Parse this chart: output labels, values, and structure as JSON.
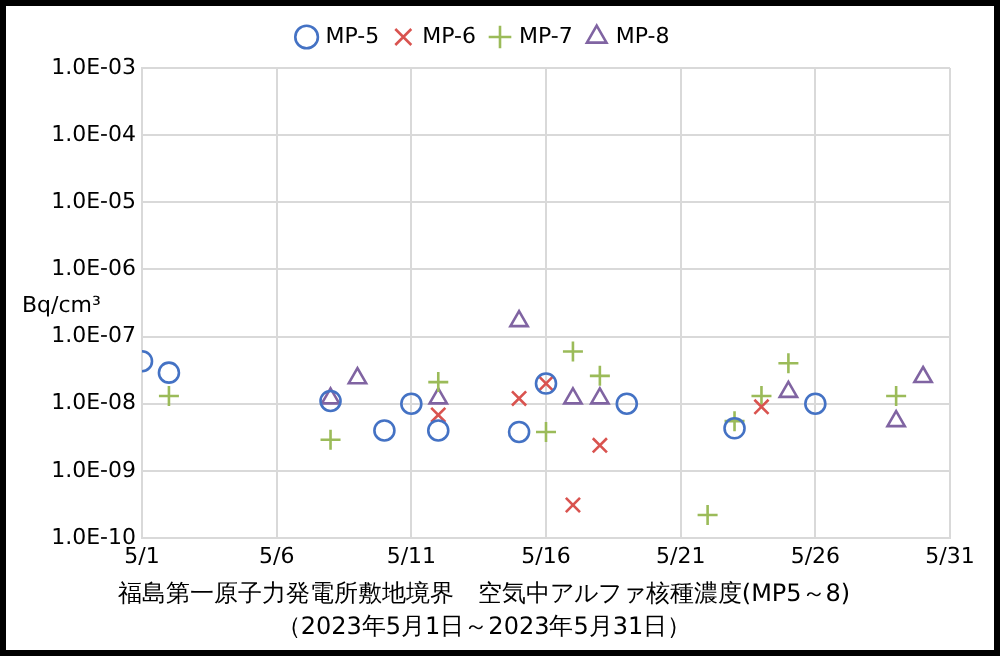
{
  "chart_data": {
    "type": "scatter",
    "title": "福島第一原子力発電所敷地境界　空気中アルファ核種濃度(MP5～8)",
    "subtitle": "（2023年5月1日～2023年5月31日）",
    "ylabel": "Bq/cm³",
    "log": "y",
    "grid": true,
    "legend": "top",
    "xlim": [
      "2023-05-01",
      "2023-05-31"
    ],
    "xticks": [
      {
        "value": "2023-05-01",
        "label": "5/1"
      },
      {
        "value": "2023-05-06",
        "label": "5/6"
      },
      {
        "value": "2023-05-11",
        "label": "5/11"
      },
      {
        "value": "2023-05-16",
        "label": "5/16"
      },
      {
        "value": "2023-05-21",
        "label": "5/21"
      },
      {
        "value": "2023-05-26",
        "label": "5/26"
      },
      {
        "value": "2023-05-31",
        "label": "5/31"
      }
    ],
    "ylim": [
      1e-10,
      0.001
    ],
    "yticks": [
      {
        "value": 1e-10,
        "label": "1.0E-10"
      },
      {
        "value": 1e-09,
        "label": "1.0E-09"
      },
      {
        "value": 1e-08,
        "label": "1.0E-08"
      },
      {
        "value": 1e-07,
        "label": "1.0E-07"
      },
      {
        "value": 1e-06,
        "label": "1.0E-06"
      },
      {
        "value": 1e-05,
        "label": "1.0E-05"
      },
      {
        "value": 0.0001,
        "label": "1.0E-04"
      },
      {
        "value": 0.001,
        "label": "1.0E-03"
      }
    ],
    "series": [
      {
        "name": "MP-5",
        "color": "#4472c4",
        "marker": "circle",
        "x": [
          "2023-05-01",
          "2023-05-02",
          "2023-05-08",
          "2023-05-10",
          "2023-05-11",
          "2023-05-12",
          "2023-05-15",
          "2023-05-16",
          "2023-05-19",
          "2023-05-23",
          "2023-05-26"
        ],
        "values": [
          4.3e-08,
          2.9e-08,
          1.1e-08,
          4e-09,
          1e-08,
          4e-09,
          3.8e-09,
          2e-08,
          1e-08,
          4.3e-09,
          1e-08
        ]
      },
      {
        "name": "MP-6",
        "color": "#d9534f",
        "marker": "cross",
        "x": [
          "2023-05-12",
          "2023-05-15",
          "2023-05-16",
          "2023-05-17",
          "2023-05-18",
          "2023-05-24"
        ],
        "values": [
          6.8e-09,
          1.2e-08,
          2e-08,
          3.1e-10,
          2.4e-09,
          9e-09
        ]
      },
      {
        "name": "MP-7",
        "color": "#9bbb59",
        "marker": "plus",
        "x": [
          "2023-05-02",
          "2023-05-08",
          "2023-05-12",
          "2023-05-16",
          "2023-05-17",
          "2023-05-18",
          "2023-05-22",
          "2023-05-23",
          "2023-05-24",
          "2023-05-25",
          "2023-05-29"
        ],
        "values": [
          1.3e-08,
          2.9e-09,
          2.1e-08,
          3.8e-09,
          6e-08,
          2.6e-08,
          2.2e-10,
          5.5e-09,
          1.3e-08,
          4e-08,
          1.3e-08
        ]
      },
      {
        "name": "MP-8",
        "color": "#8064a2",
        "marker": "triangle",
        "x": [
          "2023-05-08",
          "2023-05-09",
          "2023-05-12",
          "2023-05-15",
          "2023-05-17",
          "2023-05-18",
          "2023-05-25",
          "2023-05-29",
          "2023-05-30"
        ],
        "values": [
          1.2e-08,
          2.4e-08,
          1.2e-08,
          1.7e-07,
          1.2e-08,
          1.2e-08,
          1.5e-08,
          5.5e-09,
          2.5e-08
        ]
      }
    ]
  }
}
